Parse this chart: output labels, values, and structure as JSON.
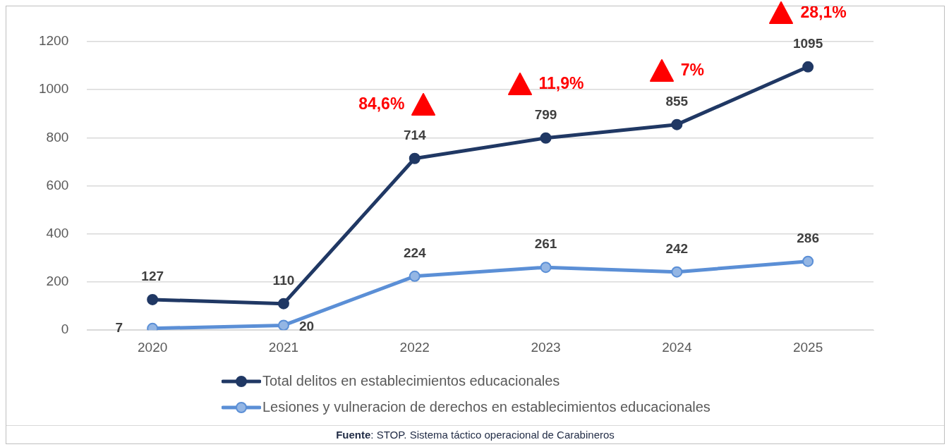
{
  "chart_data": {
    "type": "line",
    "categories": [
      "2020",
      "2021",
      "2022",
      "2023",
      "2024",
      "2025"
    ],
    "series": [
      {
        "name": "Total delitos en establecimientos educacionales",
        "color": "#203864",
        "values": [
          127,
          110,
          714,
          799,
          855,
          1095
        ]
      },
      {
        "name": "Lesiones y vulneracion de derechos en establecimientos educacionales",
        "color": "#5b8fd6",
        "values": [
          7,
          20,
          224,
          261,
          242,
          286
        ]
      }
    ],
    "ylim": [
      0,
      1200
    ],
    "yticks": [
      0,
      200,
      400,
      600,
      800,
      1000,
      1200
    ],
    "grid": "y",
    "legend": "bottom",
    "marker": "circle",
    "line_style": "solid",
    "data_labels": true,
    "annotations": [
      "84,6%",
      "11,9%",
      "7%",
      "28,1%",
      "Fuente: STOP. Sistema táctico operacional de Carabineros"
    ]
  }
}
